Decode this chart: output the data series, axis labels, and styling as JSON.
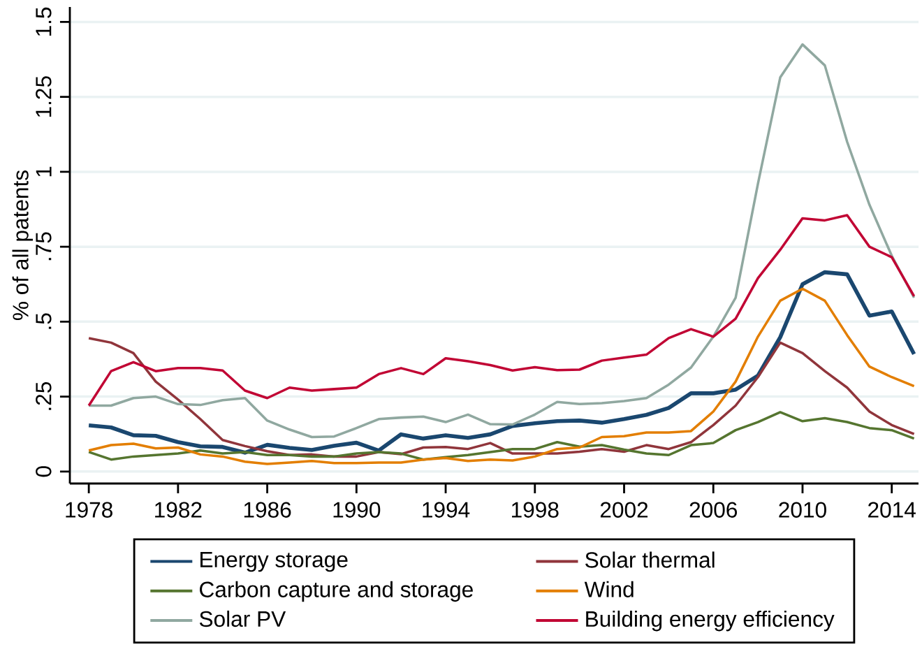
{
  "chart_data": {
    "type": "line",
    "ylabel": "% of all patents",
    "x": [
      1978,
      1979,
      1980,
      1981,
      1982,
      1983,
      1984,
      1985,
      1986,
      1987,
      1988,
      1989,
      1990,
      1991,
      1992,
      1993,
      1994,
      1995,
      1996,
      1997,
      1998,
      1999,
      2000,
      2001,
      2002,
      2003,
      2004,
      2005,
      2006,
      2007,
      2008,
      2009,
      2010,
      2011,
      2012,
      2013,
      2014,
      2015
    ],
    "series": [
      {
        "name": "Energy storage",
        "color": "#1a476f",
        "values": [
          0.154,
          0.147,
          0.121,
          0.119,
          0.098,
          0.084,
          0.082,
          0.063,
          0.089,
          0.079,
          0.072,
          0.086,
          0.096,
          0.07,
          0.124,
          0.11,
          0.121,
          0.112,
          0.124,
          0.152,
          0.161,
          0.168,
          0.17,
          0.163,
          0.175,
          0.189,
          0.212,
          0.261,
          0.261,
          0.273,
          0.32,
          0.448,
          0.625,
          0.665,
          0.658,
          0.52,
          0.534,
          0.392
        ]
      },
      {
        "name": "Solar thermal",
        "color": "#90353b",
        "values": [
          0.445,
          0.43,
          0.395,
          0.3,
          0.24,
          0.175,
          0.105,
          0.085,
          0.068,
          0.055,
          0.057,
          0.05,
          0.05,
          0.065,
          0.058,
          0.08,
          0.082,
          0.075,
          0.095,
          0.06,
          0.06,
          0.06,
          0.066,
          0.075,
          0.066,
          0.088,
          0.075,
          0.098,
          0.155,
          0.22,
          0.315,
          0.43,
          0.395,
          0.335,
          0.28,
          0.2,
          0.155,
          0.125
        ]
      },
      {
        "name": "Carbon capture and storage",
        "color": "#55752f",
        "values": [
          0.065,
          0.04,
          0.05,
          0.055,
          0.06,
          0.07,
          0.06,
          0.065,
          0.055,
          0.055,
          0.05,
          0.05,
          0.06,
          0.065,
          0.06,
          0.04,
          0.048,
          0.055,
          0.065,
          0.075,
          0.075,
          0.098,
          0.083,
          0.088,
          0.073,
          0.06,
          0.055,
          0.088,
          0.095,
          0.138,
          0.165,
          0.198,
          0.168,
          0.178,
          0.165,
          0.145,
          0.138,
          0.11
        ]
      },
      {
        "name": "Wind",
        "color": "#e37e00",
        "values": [
          0.07,
          0.088,
          0.093,
          0.077,
          0.08,
          0.057,
          0.05,
          0.033,
          0.025,
          0.03,
          0.035,
          0.028,
          0.028,
          0.03,
          0.03,
          0.04,
          0.045,
          0.035,
          0.04,
          0.037,
          0.05,
          0.075,
          0.08,
          0.115,
          0.118,
          0.13,
          0.13,
          0.135,
          0.2,
          0.3,
          0.45,
          0.57,
          0.61,
          0.57,
          0.455,
          0.35,
          0.315,
          0.285
        ]
      },
      {
        "name": "Solar PV",
        "color": "#90a8a0",
        "values": [
          0.22,
          0.22,
          0.245,
          0.25,
          0.225,
          0.222,
          0.238,
          0.245,
          0.17,
          0.14,
          0.115,
          0.117,
          0.145,
          0.175,
          0.18,
          0.183,
          0.165,
          0.19,
          0.158,
          0.157,
          0.19,
          0.232,
          0.225,
          0.228,
          0.235,
          0.245,
          0.29,
          0.347,
          0.45,
          0.58,
          0.96,
          1.315,
          1.425,
          1.355,
          1.1,
          0.89,
          0.72,
          0.58
        ]
      },
      {
        "name": "Building energy efficiency",
        "color": "#c10534",
        "values": [
          0.22,
          0.335,
          0.365,
          0.335,
          0.345,
          0.345,
          0.337,
          0.27,
          0.245,
          0.28,
          0.27,
          0.275,
          0.28,
          0.325,
          0.345,
          0.325,
          0.378,
          0.368,
          0.355,
          0.337,
          0.348,
          0.338,
          0.34,
          0.37,
          0.38,
          0.39,
          0.445,
          0.475,
          0.45,
          0.51,
          0.645,
          0.74,
          0.845,
          0.838,
          0.855,
          0.75,
          0.715,
          0.585
        ]
      }
    ],
    "xlim": [
      1977.15,
      2015.2
    ],
    "xticks": [
      1978,
      1982,
      1986,
      1990,
      1994,
      1998,
      2002,
      2006,
      2010,
      2014
    ],
    "ylim": [
      -0.04,
      1.55
    ],
    "yticks": [
      0,
      {
        "value": 0.25,
        "label": ".25"
      },
      {
        "value": 0.5,
        "label": ".5"
      },
      {
        "value": 0.75,
        "label": ".75"
      },
      1,
      1.25,
      1.5
    ],
    "grid": "y",
    "legend": "bottom",
    "marker": "none",
    "line_style": "solid"
  }
}
